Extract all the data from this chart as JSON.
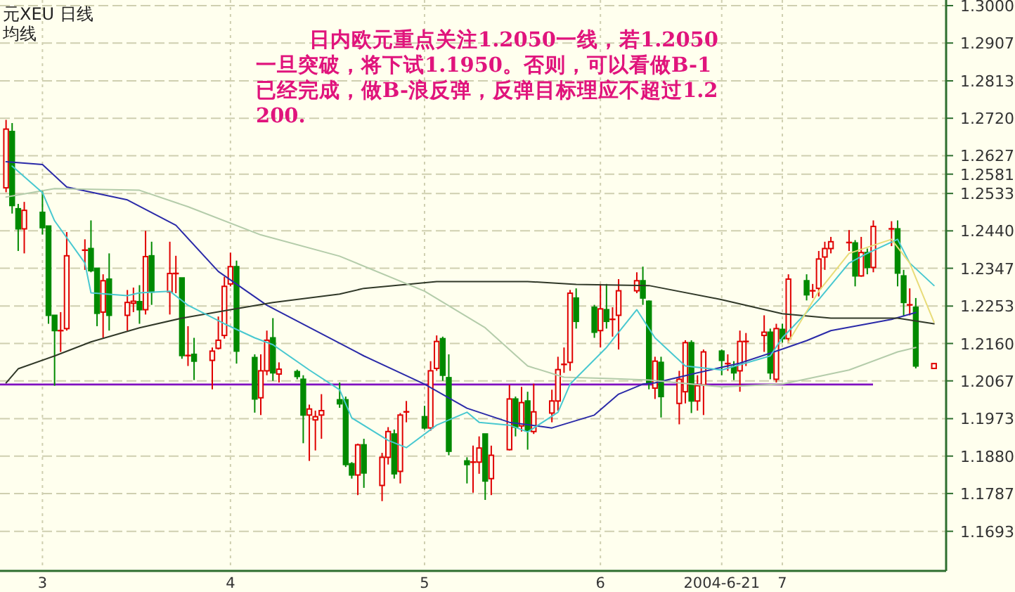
{
  "chart_data": {
    "type": "candlestick",
    "title": "元XEU  日线",
    "subtitle": "均线",
    "annotations": [
      "日内欧元重点关注1.2050一线，若1.2050一旦突破，将下试1.1950。否则，可以看做B-1已经完成，做B-浪反弹，反弹目标理应不超过1.2200."
    ],
    "x": [
      "2004-02-24",
      "2004-02-25",
      "2004-02-26",
      "2004-02-27",
      "2004-03-01",
      "2004-03-02",
      "2004-03-03",
      "2004-03-04",
      "2004-03-05",
      "2004-03-08",
      "2004-03-09",
      "2004-03-10",
      "2004-03-11",
      "2004-03-12",
      "2004-03-15",
      "2004-03-16",
      "2004-03-17",
      "2004-03-18",
      "2004-03-19",
      "2004-03-22",
      "2004-03-23",
      "2004-03-24",
      "2004-03-25",
      "2004-03-26",
      "2004-03-29",
      "2004-03-30",
      "2004-03-31",
      "2004-04-01",
      "2004-04-02",
      "2004-04-05",
      "2004-04-06",
      "2004-04-07",
      "2004-04-08",
      "2004-04-09",
      "2004-04-12",
      "2004-04-13",
      "2004-04-14",
      "2004-04-15",
      "2004-04-16",
      "2004-04-19",
      "2004-04-20",
      "2004-04-21",
      "2004-04-22",
      "2004-04-23",
      "2004-04-26",
      "2004-04-27",
      "2004-04-28",
      "2004-04-29",
      "2004-04-30",
      "2004-05-03",
      "2004-05-04",
      "2004-05-05",
      "2004-05-06",
      "2004-05-07",
      "2004-05-10",
      "2004-05-11",
      "2004-05-12",
      "2004-05-13",
      "2004-05-14",
      "2004-05-17",
      "2004-05-18",
      "2004-05-19",
      "2004-05-20",
      "2004-05-21",
      "2004-05-24",
      "2004-05-25",
      "2004-05-26",
      "2004-05-27",
      "2004-05-28",
      "2004-05-31",
      "2004-06-01",
      "2004-06-02",
      "2004-06-03",
      "2004-06-04",
      "2004-06-07",
      "2004-06-08",
      "2004-06-09",
      "2004-06-10",
      "2004-06-11",
      "2004-06-14",
      "2004-06-15",
      "2004-06-16",
      "2004-06-17",
      "2004-06-18",
      "2004-06-21",
      "2004-06-22",
      "2004-06-23",
      "2004-06-24",
      "2004-06-25",
      "2004-06-28",
      "2004-06-29",
      "2004-06-30",
      "2004-07-01",
      "2004-07-02",
      "2004-07-05",
      "2004-07-06",
      "2004-07-07",
      "2004-07-08",
      "2004-07-09",
      "2004-07-12",
      "2004-07-13",
      "2004-07-14",
      "2004-07-15",
      "2004-07-16",
      "2004-07-19",
      "2004-07-20",
      "2004-07-21",
      "2004-07-22",
      "2004-07-23",
      "2004-07-26"
    ],
    "ohlc": [
      [
        1.2547,
        1.2716,
        1.2536,
        1.2693
      ],
      [
        1.2687,
        1.2708,
        1.2483,
        1.2503
      ],
      [
        1.2495,
        1.2507,
        1.239,
        1.2445
      ],
      [
        1.2445,
        1.2512,
        1.2384,
        1.2491
      ],
      [
        1.2486,
        1.2542,
        1.2431,
        1.2448
      ],
      [
        1.2452,
        1.2452,
        1.2209,
        1.223
      ],
      [
        1.223,
        1.223,
        1.2055,
        1.2192
      ],
      [
        1.2192,
        1.2238,
        1.2139,
        1.2192
      ],
      [
        1.2197,
        1.2437,
        1.2192,
        1.2378
      ],
      [
        1.2392,
        1.2419,
        1.2343,
        1.2392
      ],
      [
        1.2396,
        1.2466,
        1.2337,
        1.2341
      ],
      [
        1.2347,
        1.2347,
        1.2203,
        1.2235
      ],
      [
        1.2238,
        1.2332,
        1.2174,
        1.2316
      ],
      [
        1.232,
        1.2384,
        1.2192,
        1.223
      ],
      [
        1.223,
        1.2293,
        1.2192,
        1.2262
      ],
      [
        1.226,
        1.2299,
        1.2238,
        1.2265
      ],
      [
        1.2264,
        1.2305,
        1.2209,
        1.2244
      ],
      [
        1.2244,
        1.244,
        1.2232,
        1.2376
      ],
      [
        1.2378,
        1.2413,
        1.2256,
        1.2288
      ],
      [
        1.2288,
        1.2413,
        1.2232,
        1.2334
      ],
      [
        1.2334,
        1.2378,
        1.2285,
        1.2334
      ],
      [
        1.2323,
        1.2323,
        1.2122,
        1.213
      ],
      [
        1.213,
        1.2203,
        1.2104,
        1.213
      ],
      [
        1.2133,
        1.2174,
        1.2069,
        1.2116
      ],
      [
        1.2118,
        1.215,
        1.2046,
        1.2141
      ],
      [
        1.2148,
        1.2227,
        1.2145,
        1.2168
      ],
      [
        1.218,
        1.2326,
        1.2172,
        1.2302
      ],
      [
        1.2308,
        1.2386,
        1.2302,
        1.2351
      ],
      [
        1.2351,
        1.2366,
        1.211,
        1.2141
      ],
      [
        1.2125,
        1.2133,
        1.1988,
        1.2022
      ],
      [
        1.2025,
        1.2133,
        1.1982,
        1.2092
      ],
      [
        1.2092,
        1.2192,
        1.2081,
        1.2168
      ],
      [
        1.2174,
        1.2223,
        1.2067,
        1.2087
      ],
      [
        1.2084,
        1.2113,
        1.2063,
        1.2096
      ],
      [
        1.209,
        1.2095,
        1.2071,
        1.2078
      ],
      [
        1.2071,
        1.2081,
        1.1912,
        1.1982
      ],
      [
        1.1982,
        1.2008,
        1.1868,
        1.1997
      ],
      [
        1.197,
        1.1993,
        1.1894,
        1.1978
      ],
      [
        1.1982,
        1.2034,
        1.1923,
        1.1993
      ],
      [
        1.202,
        1.2063,
        1.2,
        1.201
      ],
      [
        1.202,
        1.2028,
        1.1853,
        1.1859
      ],
      [
        1.1861,
        1.1865,
        1.1824,
        1.1833
      ],
      [
        1.1833,
        1.1911,
        1.1783,
        1.1908
      ],
      [
        1.1908,
        1.1923,
        1.1801,
        1.1838
      ],
      [
        1.1807,
        1.1888,
        1.1768,
        1.1877
      ],
      [
        1.1877,
        1.1952,
        1.1859,
        1.1941
      ],
      [
        1.1935,
        1.1946,
        1.1824,
        1.1836
      ],
      [
        1.1842,
        1.1987,
        1.1812,
        1.1982
      ],
      [
        1.199,
        1.2017,
        1.1964,
        1.199
      ],
      [
        1.1978,
        1.2005,
        1.1946,
        1.195
      ],
      [
        1.195,
        1.2116,
        1.1943,
        1.2092
      ],
      [
        1.2098,
        1.218,
        1.2092,
        1.2165
      ],
      [
        1.2172,
        1.2177,
        1.2067,
        1.2081
      ],
      [
        1.2075,
        1.2133,
        1.1882,
        1.1892
      ],
      [
        1.1868,
        1.1877,
        1.1812,
        1.1859
      ],
      [
        1.1865,
        1.1906,
        1.1789,
        1.1865
      ],
      [
        1.1865,
        1.1929,
        1.1836,
        1.19
      ],
      [
        1.1935,
        1.1935,
        1.1771,
        1.1818
      ],
      [
        1.1824,
        1.1906,
        1.1783,
        1.1882
      ],
      [
        1.1896,
        1.2057,
        1.1894,
        1.2022
      ],
      [
        1.2022,
        1.2028,
        1.1929,
        1.1952
      ],
      [
        1.1955,
        1.2052,
        1.1941,
        1.2013
      ],
      [
        1.2017,
        1.204,
        1.1896,
        1.1943
      ],
      [
        1.1941,
        1.206,
        1.1935,
        1.199
      ],
      [
        1.1987,
        1.2045,
        1.1964,
        1.2017
      ],
      [
        1.2017,
        1.2127,
        1.1993,
        1.2095
      ],
      [
        1.2108,
        1.215,
        1.2087,
        1.2108
      ],
      [
        1.2113,
        1.2293,
        1.2092,
        1.2285
      ],
      [
        1.2273,
        1.2297,
        1.2197,
        1.2215
      ],
      [
        1.225,
        1.2256,
        1.2174,
        1.2188
      ],
      [
        1.2192,
        1.2308,
        1.215,
        1.2246
      ],
      [
        1.2244,
        1.2308,
        1.2197,
        1.2215
      ],
      [
        1.222,
        1.225,
        1.2177,
        1.222
      ],
      [
        1.223,
        1.232,
        1.2145,
        1.2291
      ],
      [
        1.2291,
        1.2337,
        1.2285,
        1.2316
      ],
      [
        1.2316,
        1.2351,
        1.2256,
        1.2273
      ],
      [
        1.2265,
        1.2267,
        1.2046,
        1.2063
      ],
      [
        1.2049,
        1.2127,
        1.2022,
        1.2116
      ],
      [
        1.2113,
        1.2127,
        1.1976,
        1.2028
      ],
      [
        1.2011,
        1.2092,
        1.1959,
        1.2071
      ],
      [
        1.204,
        1.2168,
        1.2011,
        1.2162
      ],
      [
        1.2162,
        1.2168,
        1.1987,
        1.2017
      ],
      [
        1.2017,
        1.2081,
        1.1993,
        1.2055
      ],
      [
        1.2057,
        1.2145,
        1.1982,
        1.2139
      ],
      [
        1.2141,
        1.2145,
        1.2081,
        1.2118
      ],
      [
        1.211,
        1.2133,
        1.2092,
        1.211
      ],
      [
        1.2102,
        1.2116,
        1.2069,
        1.2087
      ],
      [
        1.2092,
        1.2192,
        1.204,
        1.2165
      ],
      [
        1.2165,
        1.2186,
        1.2104,
        1.2165
      ],
      [
        1.218,
        1.223,
        1.2139,
        1.2188
      ],
      [
        1.2188,
        1.2197,
        1.2071,
        1.2087
      ],
      [
        1.2071,
        1.2209,
        1.2063,
        1.2197
      ],
      [
        1.2195,
        1.2209,
        1.2162,
        1.2172
      ],
      [
        1.2172,
        1.2332,
        1.2162,
        1.232
      ],
      [
        1.2316,
        1.2332,
        1.2267,
        1.2281
      ],
      [
        1.2291,
        1.2308,
        1.2273,
        1.2291
      ],
      [
        1.2297,
        1.239,
        1.2277,
        1.237
      ],
      [
        1.2375,
        1.2413,
        1.2343,
        1.2396
      ],
      [
        1.2396,
        1.2425,
        1.2384,
        1.2413
      ],
      [
        1.2411,
        1.2442,
        1.239,
        1.2411
      ],
      [
        1.241,
        1.2417,
        1.2302,
        1.2328
      ],
      [
        1.2328,
        1.2425,
        1.2326,
        1.2386
      ],
      [
        1.2386,
        1.2396,
        1.2332,
        1.2349
      ],
      [
        1.2349,
        1.2466,
        1.2337,
        1.2451
      ],
      [
        1.2445,
        1.2464,
        1.2402,
        1.2445
      ],
      [
        1.2445,
        1.2466,
        1.2302,
        1.2335
      ],
      [
        1.2328,
        1.2343,
        1.2227,
        1.2262
      ],
      [
        1.2256,
        1.2297,
        1.223,
        1.2256
      ],
      [
        1.225,
        1.2273,
        1.2098,
        1.2104
      ],
      [
        1.2098,
        1.211,
        1.2098,
        1.211
      ]
    ],
    "series": [
      {
        "type": "line",
        "color": "#2a2aa8",
        "x": [
          "2004-02-24",
          "2004-03-01",
          "2004-03-05",
          "2004-03-15",
          "2004-03-23",
          "2004-03-30",
          "2004-04-07",
          "2004-04-15",
          "2004-04-23",
          "2004-05-03",
          "2004-05-10",
          "2004-05-17",
          "2004-05-24",
          "2004-05-31",
          "2004-06-04",
          "2004-06-08",
          "2004-06-10",
          "2004-06-17",
          "2004-06-24",
          "2004-07-01",
          "2004-07-05",
          "2004-07-09",
          "2004-07-19",
          "2004-07-23"
        ],
        "values": [
          1.2612,
          1.2605,
          1.2549,
          1.2517,
          1.2454,
          1.2339,
          1.2255,
          1.2192,
          1.2129,
          1.2059,
          1.1999,
          1.1964,
          1.195,
          1.1982,
          1.2034,
          1.2059,
          1.2062,
          1.2087,
          1.2111,
          1.2146,
          1.2167,
          1.2192,
          1.222,
          1.2237
        ]
      },
      {
        "type": "line",
        "color": "#303828",
        "x": [
          "2004-02-24",
          "2004-02-26",
          "2004-03-03",
          "2004-03-09",
          "2004-03-17",
          "2004-03-24",
          "2004-04-01",
          "2004-04-08",
          "2004-04-19",
          "2004-04-23",
          "2004-05-05",
          "2004-05-20",
          "2004-05-28",
          "2004-06-09",
          "2004-06-21",
          "2004-07-01",
          "2004-07-09",
          "2004-07-20",
          "2004-07-26"
        ],
        "values": [
          1.2062,
          1.2097,
          1.2129,
          1.2164,
          1.2199,
          1.2223,
          1.2244,
          1.2262,
          1.2283,
          1.2297,
          1.2314,
          1.2314,
          1.2307,
          1.2304,
          1.2269,
          1.2234,
          1.2223,
          1.2223,
          1.2209
        ]
      },
      {
        "type": "line",
        "color": "#b4ccaa",
        "x": [
          "2004-02-24",
          "2004-03-03",
          "2004-03-17",
          "2004-03-25",
          "2004-04-06",
          "2004-04-19",
          "2004-05-03",
          "2004-05-13",
          "2004-05-20",
          "2004-05-26",
          "2004-06-02",
          "2004-06-09",
          "2004-06-21",
          "2004-07-01",
          "2004-07-12",
          "2004-07-20",
          "2004-07-23"
        ],
        "values": [
          1.2524,
          1.2545,
          1.2541,
          1.25,
          1.243,
          1.2377,
          1.229,
          1.2199,
          1.2104,
          1.2076,
          1.2073,
          1.2069,
          1.2052,
          1.2059,
          1.2094,
          1.2139,
          1.215
        ]
      },
      {
        "type": "line",
        "color": "#48c8d0",
        "x": [
          "2004-02-25",
          "2004-03-01",
          "2004-03-03",
          "2004-03-08",
          "2004-03-09",
          "2004-03-15",
          "2004-03-17",
          "2004-03-22",
          "2004-03-25",
          "2004-03-31",
          "2004-04-05",
          "2004-04-08",
          "2004-04-14",
          "2004-04-19",
          "2004-04-21",
          "2004-04-27",
          "2004-04-30",
          "2004-05-05",
          "2004-05-10",
          "2004-05-12",
          "2004-05-17",
          "2004-05-20",
          "2004-05-25",
          "2004-05-27",
          "2004-06-02",
          "2004-06-07",
          "2004-06-10",
          "2004-06-15",
          "2004-06-21",
          "2004-06-29",
          "2004-07-01",
          "2004-07-07",
          "2004-07-12",
          "2004-07-15",
          "2004-07-20",
          "2004-07-22",
          "2004-07-26"
        ],
        "values": [
          1.2601,
          1.2535,
          1.2465,
          1.236,
          1.2286,
          1.2279,
          1.2286,
          1.229,
          1.2255,
          1.2209,
          1.2174,
          1.2157,
          1.2094,
          1.2045,
          1.1975,
          1.1919,
          1.1901,
          1.1957,
          1.1989,
          1.1964,
          1.1957,
          1.194,
          1.1989,
          1.2059,
          1.215,
          1.2244,
          1.2174,
          1.2104,
          1.2094,
          1.2129,
          1.2174,
          1.2269,
          1.236,
          1.2384,
          1.2419,
          1.236,
          1.2304
        ]
      },
      {
        "type": "line",
        "color": "#e8dc78",
        "x": [
          "2004-07-02",
          "2004-07-07",
          "2004-07-12",
          "2004-07-19",
          "2004-07-22",
          "2004-07-26"
        ],
        "values": [
          1.2164,
          1.229,
          1.2384,
          1.2419,
          1.236,
          1.2213
        ]
      }
    ],
    "xlim": [
      "2004-02-23",
      "2004-07-28"
    ],
    "ylim": [
      1.1598,
      1.3014
    ],
    "xticks": [
      {
        "value": "2004-03-01",
        "label": "3"
      },
      {
        "value": "2004-04-01",
        "label": "4"
      },
      {
        "value": "2004-05-03",
        "label": "5"
      },
      {
        "value": "2004-06-01",
        "label": "6"
      },
      {
        "value": "2004-06-21",
        "label": "2004-6-21"
      },
      {
        "value": "2004-07-01",
        "label": "7"
      }
    ],
    "yticks": [
      {
        "value": 1.3,
        "label": "1.3000"
      },
      1.2907,
      1.2813,
      {
        "value": 1.272,
        "label": "1.2720"
      },
      1.2627,
      1.2581,
      1.2533,
      {
        "value": 1.244,
        "label": "1.2440"
      },
      1.2347,
      1.2253,
      {
        "value": 1.216,
        "label": "1.2160"
      },
      1.2067,
      1.1973,
      {
        "value": 1.188,
        "label": "1.1880"
      },
      1.1787,
      1.1693
    ],
    "ref_lines": [
      {
        "axis": "y",
        "value": 1.2058,
        "color": "#8010c0"
      }
    ],
    "grid": true
  }
}
